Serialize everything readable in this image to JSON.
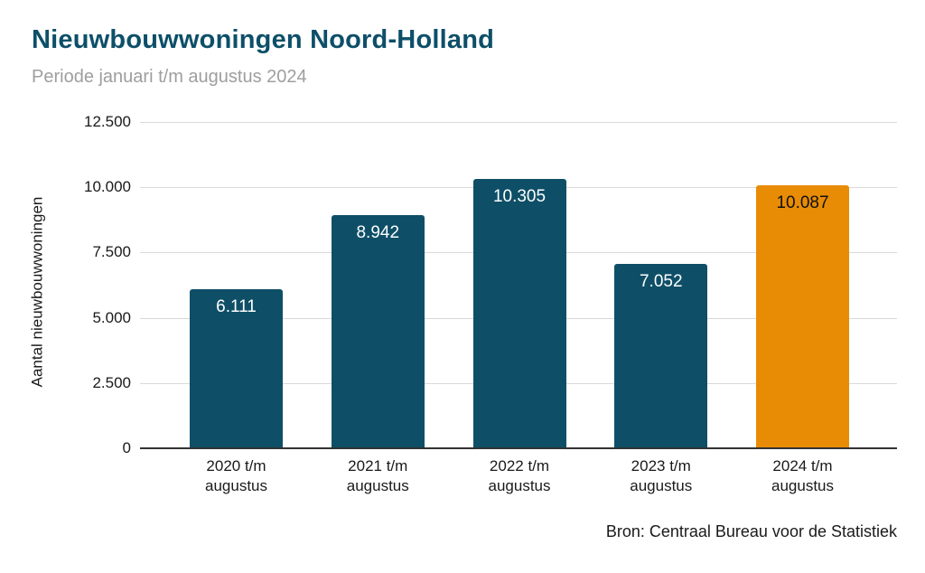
{
  "header": {
    "title": "Nieuwbouwwoningen Noord-Holland",
    "subtitle": "Periode januari t/m augustus 2024"
  },
  "source_caption": "Bron: Centraal Bureau voor de Statistiek",
  "colors": {
    "title": "#0d4f68",
    "subtitle": "#9e9e9e",
    "bar_teal": "#0e4f67",
    "bar_orange": "#e88c06",
    "gridline": "#d9d9d9",
    "baseline": "#333333"
  },
  "chart_data": {
    "type": "bar",
    "title": "Nieuwbouwwoningen Noord-Holland",
    "subtitle": "Periode januari t/m augustus 2024",
    "categories": [
      "2020 t/m augustus",
      "2021 t/m augustus",
      "2022 t/m augustus",
      "2023 t/m augustus",
      "2024 t/m augustus"
    ],
    "category_lines": [
      [
        "2020 t/m",
        "augustus"
      ],
      [
        "2021 t/m",
        "augustus"
      ],
      [
        "2022 t/m",
        "augustus"
      ],
      [
        "2023 t/m",
        "augustus"
      ],
      [
        "2024 t/m",
        "augustus"
      ]
    ],
    "values": [
      6111,
      8942,
      10305,
      7052,
      10087
    ],
    "value_labels": [
      "6.111",
      "8.942",
      "10.305",
      "7.052",
      "10.087"
    ],
    "bar_colors": [
      "#0e4f67",
      "#0e4f67",
      "#0e4f67",
      "#0e4f67",
      "#e88c06"
    ],
    "value_label_colors": [
      "#ffffff",
      "#ffffff",
      "#ffffff",
      "#ffffff",
      "#111111"
    ],
    "xlabel": "",
    "ylabel": "Aantal nieuwbouwwoningen",
    "ylim": [
      0,
      12500
    ],
    "yticks": [
      0,
      2500,
      5000,
      7500,
      10000,
      12500
    ],
    "ytick_labels": [
      "0",
      "2.500",
      "5.000",
      "7.500",
      "10.000",
      "12.500"
    ],
    "grid": true,
    "legend": "none",
    "source": "Bron: Centraal Bureau voor de Statistiek"
  }
}
